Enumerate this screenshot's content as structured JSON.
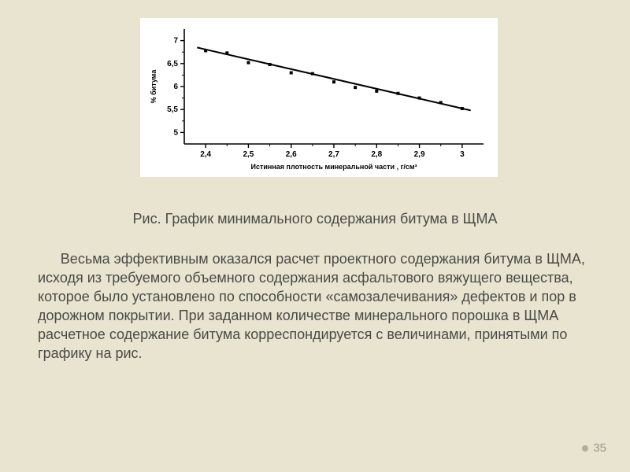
{
  "slide": {
    "background_color": "#e8e4d0",
    "text_color": "#4a4a46",
    "body_fontsize": 18,
    "caption_fontsize": 18,
    "page_number": "35",
    "page_number_color": "#9b9784",
    "page_marker_color": "#b4af97"
  },
  "chart": {
    "type": "scatter-with-fit-line",
    "background_color": "#ffffff",
    "axis_color": "#000000",
    "grid": false,
    "x_label": "Истинная плотность минеральной части , г/см³",
    "y_label": "% битума",
    "label_fontsize": 9,
    "tick_fontsize": 10,
    "xlim": [
      2.35,
      3.05
    ],
    "ylim": [
      4.75,
      7.25
    ],
    "xticks": [
      2.4,
      2.5,
      2.6,
      2.7,
      2.8,
      2.9,
      3.0
    ],
    "xtick_labels": [
      "2,4",
      "2,5",
      "2,6",
      "2,7",
      "2,8",
      "2,9",
      "3"
    ],
    "yticks": [
      5,
      5.5,
      6,
      6.5,
      7
    ],
    "ytick_labels": [
      "5",
      "5,5",
      "6",
      "6,5",
      "7"
    ],
    "tick_len_major": 5,
    "tick_len_minor": 3,
    "points": [
      {
        "x": 2.4,
        "y": 6.78
      },
      {
        "x": 2.45,
        "y": 6.73
      },
      {
        "x": 2.5,
        "y": 6.52
      },
      {
        "x": 2.55,
        "y": 6.48
      },
      {
        "x": 2.6,
        "y": 6.3
      },
      {
        "x": 2.65,
        "y": 6.28
      },
      {
        "x": 2.7,
        "y": 6.1
      },
      {
        "x": 2.75,
        "y": 5.98
      },
      {
        "x": 2.8,
        "y": 5.9
      },
      {
        "x": 2.85,
        "y": 5.85
      },
      {
        "x": 2.9,
        "y": 5.75
      },
      {
        "x": 2.95,
        "y": 5.65
      },
      {
        "x": 3.0,
        "y": 5.52
      }
    ],
    "marker_style": "filled-square",
    "marker_size": 4,
    "marker_color": "#000000",
    "fit_line": {
      "x0": 2.38,
      "y0": 6.85,
      "x1": 3.02,
      "y1": 5.48
    },
    "line_width": 2,
    "line_color": "#000000",
    "axis_width": 1.6
  },
  "caption": "Рис. График минимального содержания битума в ЩМА",
  "body": "Весьма эффективным оказался расчет проектного содержания битума в ЩМА, исходя из требуемого объемного содержания асфальтового вяжущего вещества, которое было установлено по способности «самозалечивания» дефектов и пор в дорожном покрытии. При заданном количестве минерального порошка в ЩМА расчетное содержание битума корреспондируется с величинами, принятыми по графику на рис."
}
